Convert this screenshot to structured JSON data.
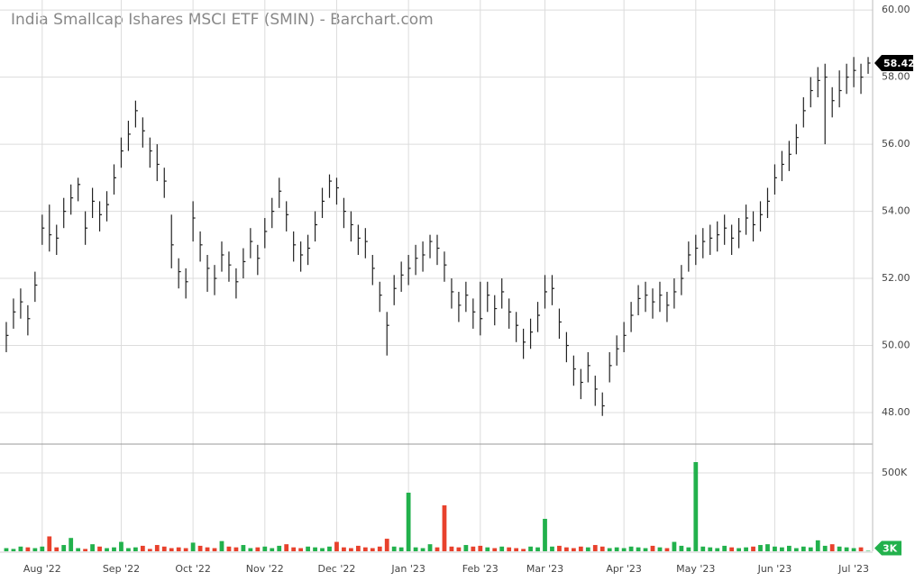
{
  "chart_data": {
    "type": "ohlc",
    "title": "India Smallcap Ishares MSCI ETF (SMIN) - Barchart.com",
    "categories": [
      null,
      null,
      null,
      null,
      null,
      "Aug '22",
      null,
      null,
      null,
      null,
      null,
      null,
      null,
      null,
      null,
      null,
      "Sep '22",
      null,
      null,
      null,
      null,
      null,
      null,
      null,
      null,
      null,
      "Oct '22",
      null,
      null,
      null,
      null,
      null,
      null,
      null,
      null,
      null,
      "Nov '22",
      null,
      null,
      null,
      null,
      null,
      null,
      null,
      null,
      null,
      "Dec '22",
      null,
      null,
      null,
      null,
      null,
      null,
      null,
      null,
      null,
      "Jan '23",
      null,
      null,
      null,
      null,
      null,
      null,
      null,
      null,
      null,
      "Feb '23",
      null,
      null,
      null,
      null,
      null,
      null,
      null,
      null,
      "Mar '23",
      null,
      null,
      null,
      null,
      null,
      null,
      null,
      null,
      null,
      null,
      "Apr '23",
      null,
      null,
      null,
      null,
      null,
      null,
      null,
      null,
      null,
      "May '23",
      null,
      null,
      null,
      null,
      null,
      null,
      null,
      null,
      null,
      null,
      "Jun '23",
      null,
      null,
      null,
      null,
      null,
      null,
      null,
      null,
      null,
      null,
      "Jul '23",
      null,
      null
    ],
    "high": [
      50.7,
      51.4,
      51.7,
      51.2,
      52.2,
      53.9,
      54.2,
      53.6,
      54.4,
      54.8,
      55.0,
      54.0,
      54.7,
      54.3,
      54.6,
      55.4,
      56.2,
      56.7,
      57.3,
      56.8,
      56.2,
      56.0,
      55.3,
      53.9,
      52.6,
      52.3,
      54.3,
      53.4,
      52.7,
      52.4,
      53.1,
      52.8,
      52.3,
      52.9,
      53.5,
      53.0,
      53.8,
      54.4,
      55.0,
      54.3,
      53.4,
      53.1,
      53.3,
      54.0,
      54.7,
      55.1,
      55.0,
      54.4,
      54.0,
      53.6,
      53.5,
      52.7,
      51.9,
      51.0,
      52.1,
      52.5,
      52.7,
      53.0,
      53.1,
      53.3,
      53.3,
      52.8,
      52.0,
      51.6,
      51.9,
      51.4,
      51.9,
      51.9,
      51.5,
      52.0,
      51.4,
      51.0,
      50.5,
      50.8,
      51.3,
      52.1,
      52.1,
      51.1,
      50.4,
      49.7,
      49.3,
      49.8,
      49.1,
      48.6,
      49.8,
      50.3,
      50.7,
      51.3,
      51.8,
      51.9,
      51.7,
      51.9,
      51.6,
      52.0,
      52.4,
      53.1,
      53.3,
      53.5,
      53.6,
      53.7,
      53.9,
      53.6,
      53.8,
      54.2,
      54.0,
      54.3,
      54.7,
      55.4,
      55.8,
      56.1,
      56.6,
      57.4,
      58.0,
      58.3,
      58.4,
      57.7,
      58.2,
      58.4,
      58.6,
      58.4,
      58.6
    ],
    "low": [
      49.8,
      50.5,
      50.8,
      50.3,
      51.3,
      53.0,
      52.8,
      52.7,
      53.5,
      53.9,
      54.3,
      53.0,
      53.8,
      53.4,
      53.7,
      54.5,
      55.3,
      55.8,
      56.5,
      55.9,
      55.3,
      54.9,
      54.4,
      52.3,
      51.7,
      51.4,
      53.1,
      52.5,
      51.6,
      51.5,
      52.2,
      51.9,
      51.4,
      52.0,
      52.6,
      52.1,
      52.9,
      53.5,
      54.1,
      53.4,
      52.5,
      52.2,
      52.4,
      53.1,
      53.8,
      54.4,
      54.2,
      53.5,
      53.1,
      52.7,
      52.6,
      51.8,
      51.0,
      49.7,
      51.2,
      51.6,
      51.8,
      52.1,
      52.2,
      52.6,
      52.4,
      51.9,
      51.1,
      50.7,
      51.0,
      50.5,
      50.3,
      51.0,
      50.6,
      51.1,
      50.5,
      50.1,
      49.6,
      49.9,
      50.4,
      51.1,
      51.2,
      50.2,
      49.5,
      48.8,
      48.4,
      48.9,
      48.2,
      47.9,
      48.9,
      49.4,
      49.8,
      50.4,
      50.9,
      51.0,
      50.8,
      51.0,
      50.7,
      51.1,
      51.5,
      52.2,
      52.4,
      52.6,
      52.7,
      52.8,
      53.0,
      52.7,
      52.9,
      53.3,
      53.1,
      53.4,
      53.8,
      54.5,
      54.9,
      55.2,
      55.7,
      56.5,
      57.1,
      57.4,
      56.0,
      56.8,
      57.1,
      57.5,
      57.7,
      57.5,
      58.1
    ],
    "close": [
      50.3,
      51.0,
      51.3,
      50.8,
      51.8,
      53.5,
      53.3,
      53.2,
      54.0,
      54.4,
      54.8,
      53.5,
      54.3,
      53.9,
      54.2,
      55.0,
      55.8,
      56.3,
      57.0,
      56.4,
      55.8,
      55.4,
      54.9,
      53.0,
      52.2,
      51.9,
      53.8,
      53.0,
      52.3,
      52.0,
      52.7,
      52.4,
      51.9,
      52.5,
      53.1,
      52.6,
      53.4,
      54.0,
      54.6,
      53.9,
      53.0,
      52.7,
      52.9,
      53.6,
      54.3,
      54.9,
      54.7,
      54.0,
      53.6,
      53.2,
      53.1,
      52.3,
      51.5,
      50.6,
      51.7,
      52.1,
      52.3,
      52.6,
      52.7,
      53.1,
      52.9,
      52.4,
      51.6,
      51.2,
      51.5,
      51.0,
      50.8,
      51.5,
      51.1,
      51.6,
      51.0,
      50.6,
      50.1,
      50.4,
      50.9,
      51.6,
      51.7,
      50.7,
      50.0,
      49.3,
      48.9,
      49.4,
      48.7,
      48.2,
      49.4,
      49.9,
      50.3,
      50.9,
      51.4,
      51.5,
      51.3,
      51.5,
      51.2,
      51.6,
      52.0,
      52.7,
      52.9,
      53.1,
      53.2,
      53.3,
      53.5,
      53.2,
      53.4,
      53.8,
      53.6,
      53.9,
      54.3,
      55.0,
      55.4,
      55.7,
      56.2,
      57.0,
      57.6,
      57.9,
      58.0,
      57.3,
      57.6,
      58.0,
      58.2,
      58.0,
      58.42
    ],
    "color": "#222222",
    "last_color": "#000000",
    "ylim": [
      47.06,
      60.3
    ],
    "yticks": [
      {
        "value": 48,
        "label": "48.00"
      },
      {
        "value": 50,
        "label": "50.00"
      },
      {
        "value": 52,
        "label": "52.00"
      },
      {
        "value": 54,
        "label": "54.00"
      },
      {
        "value": 56,
        "label": "56.00"
      },
      {
        "value": 58,
        "label": "58.00"
      },
      {
        "value": 60,
        "label": "60.00"
      }
    ],
    "grid": true,
    "volume": {
      "values": [
        20000,
        15000,
        30000,
        25000,
        20000,
        30000,
        95000,
        25000,
        40000,
        85000,
        20000,
        15000,
        45000,
        30000,
        20000,
        25000,
        60000,
        20000,
        25000,
        35000,
        15000,
        40000,
        30000,
        20000,
        25000,
        20000,
        55000,
        35000,
        25000,
        20000,
        65000,
        30000,
        25000,
        40000,
        20000,
        25000,
        30000,
        20000,
        35000,
        45000,
        25000,
        20000,
        30000,
        25000,
        20000,
        30000,
        60000,
        25000,
        20000,
        35000,
        25000,
        20000,
        30000,
        80000,
        30000,
        25000,
        374000,
        25000,
        20000,
        45000,
        25000,
        293000,
        30000,
        25000,
        40000,
        30000,
        35000,
        25000,
        20000,
        30000,
        25000,
        20000,
        15000,
        30000,
        25000,
        207000,
        30000,
        35000,
        25000,
        20000,
        30000,
        25000,
        40000,
        30000,
        20000,
        25000,
        20000,
        30000,
        25000,
        20000,
        35000,
        25000,
        20000,
        60000,
        35000,
        25000,
        569000,
        30000,
        25000,
        20000,
        35000,
        25000,
        20000,
        25000,
        30000,
        40000,
        45000,
        30000,
        25000,
        35000,
        20000,
        30000,
        25000,
        70000,
        35000,
        45000,
        30000,
        25000,
        20000,
        25000,
        3000
      ],
      "value_labels": [
        null,
        null,
        null,
        null,
        null,
        null,
        null,
        null,
        null,
        null,
        null,
        null,
        null,
        null,
        null,
        null,
        null,
        null,
        null,
        null,
        null,
        null,
        null,
        null,
        null,
        null,
        null,
        null,
        null,
        null,
        null,
        null,
        null,
        null,
        null,
        null,
        null,
        null,
        null,
        null,
        null,
        null,
        null,
        null,
        null,
        null,
        null,
        null,
        null,
        null,
        null,
        null,
        null,
        null,
        null,
        null,
        null,
        null,
        null,
        null,
        null,
        null,
        null,
        null,
        null,
        null,
        null,
        null,
        null,
        null,
        null,
        null,
        null,
        null,
        null,
        null,
        null,
        null,
        null,
        null,
        null,
        null,
        null,
        null,
        null,
        null,
        null,
        null,
        null,
        null,
        null,
        null,
        null,
        null,
        null,
        null,
        null,
        null,
        null,
        null,
        null,
        null,
        null,
        null,
        null,
        null,
        null,
        null,
        null,
        null,
        null,
        null,
        null,
        null,
        null,
        null,
        null,
        null,
        null,
        null,
        "3K"
      ],
      "ylim": [
        0,
        684000
      ],
      "yticks": [
        {
          "value": 500000,
          "label": "500K"
        }
      ],
      "up_color": "#22b14c",
      "down_color": "#e8412c"
    }
  }
}
